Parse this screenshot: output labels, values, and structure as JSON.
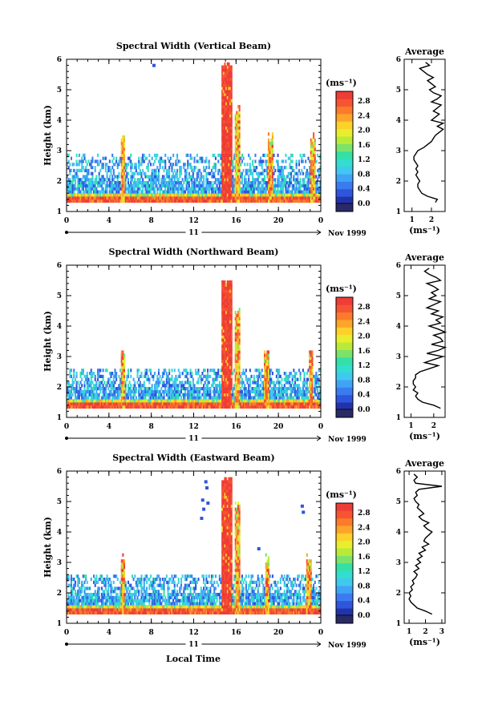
{
  "figure": {
    "xlabel_bottom": "Local Time",
    "date_label": "Nov 1999",
    "day_label": "11",
    "unit_label": "(ms⁻¹)",
    "avg_title": "Average"
  },
  "colorscale": [
    "#2a2a66",
    "#2233aa",
    "#2f55dd",
    "#3a7cf0",
    "#40a4f5",
    "#41c8f0",
    "#33ddd0",
    "#33e0a6",
    "#7be36a",
    "#b9ea3a",
    "#e8ee2e",
    "#fbd12a",
    "#fda42a",
    "#fb7a2c",
    "#f65432",
    "#ee3c36"
  ],
  "chart_data": [
    {
      "type": "heatmap",
      "title": "Spectral Width (Vertical Beam)",
      "xlabel": "",
      "ylabel": "Height (km)",
      "x_ticks": [
        "0",
        "4",
        "8",
        "12",
        "16",
        "20",
        "0"
      ],
      "y_ticks": [
        "1",
        "2",
        "3",
        "4",
        "5",
        "6"
      ],
      "xlim": [
        0,
        24
      ],
      "ylim": [
        1,
        6
      ],
      "colorbar_ticks": [
        "0.0",
        "0.4",
        "0.8",
        "1.2",
        "1.6",
        "2.0",
        "2.4",
        "2.8"
      ],
      "colorbar_range": [
        0,
        3.0
      ],
      "features": {
        "layer_top_km": 2.9,
        "spike_start_h": 14.6,
        "spike_end_h": 15.6,
        "spike_top_km": 5.85,
        "spike2_start_h": 15.8,
        "spike2_end_h": 16.3,
        "spike2_top_km": 4.5,
        "col_at_h": [
          5.3,
          19.2,
          23.2
        ],
        "isolated_points": [
          [
            8.1,
            5.75
          ]
        ]
      },
      "average_profile": {
        "xlabel": "(ms⁻¹)",
        "x_ticks": [
          "1",
          "2"
        ],
        "xlim": [
          0.6,
          2.7
        ],
        "y_ticks": [
          "1",
          "2",
          "3",
          "4",
          "5",
          "6"
        ],
        "height_km": [
          1.3,
          1.4,
          1.5,
          1.6,
          1.7,
          1.8,
          1.9,
          2.0,
          2.1,
          2.2,
          2.3,
          2.4,
          2.5,
          2.6,
          2.7,
          2.8,
          2.9,
          3.0,
          3.1,
          3.2,
          3.3,
          3.4,
          3.5,
          3.6,
          3.7,
          3.8,
          3.9,
          4.0,
          4.1,
          4.2,
          4.3,
          4.4,
          4.5,
          4.6,
          4.7,
          4.8,
          4.9,
          5.0,
          5.1,
          5.2,
          5.3,
          5.4,
          5.5,
          5.6,
          5.7,
          5.8,
          5.9
        ],
        "width_ms": [
          2.2,
          2.3,
          1.8,
          1.5,
          1.4,
          1.3,
          1.3,
          1.4,
          1.3,
          1.2,
          1.3,
          1.2,
          1.3,
          1.2,
          1.1,
          1.1,
          1.2,
          1.3,
          1.6,
          1.8,
          2.0,
          2.1,
          2.2,
          2.4,
          2.6,
          2.3,
          2.6,
          2.0,
          2.2,
          2.4,
          2.1,
          2.3,
          2.5,
          2.0,
          2.3,
          2.5,
          2.1,
          1.9,
          2.2,
          2.0,
          1.8,
          2.1,
          1.8,
          1.6,
          1.4,
          1.9,
          1.7
        ]
      }
    },
    {
      "type": "heatmap",
      "title": "Spectral Width (Northward Beam)",
      "xlabel": "",
      "ylabel": "Height (km)",
      "x_ticks": [
        "0",
        "4",
        "8",
        "12",
        "16",
        "20",
        "0"
      ],
      "y_ticks": [
        "1",
        "2",
        "3",
        "4",
        "5",
        "6"
      ],
      "xlim": [
        0,
        24
      ],
      "ylim": [
        1,
        6
      ],
      "colorbar_ticks": [
        "0.0",
        "0.4",
        "0.8",
        "1.2",
        "1.6",
        "2.0",
        "2.4",
        "2.8"
      ],
      "colorbar_range": [
        0,
        3.0
      ],
      "features": {
        "layer_top_km": 2.6,
        "spike_start_h": 14.6,
        "spike_end_h": 15.6,
        "spike_top_km": 5.5,
        "spike2_start_h": 15.8,
        "spike2_end_h": 16.3,
        "spike2_top_km": 4.6,
        "col_at_h": [
          5.2,
          18.8,
          23.0
        ],
        "isolated_points": []
      },
      "average_profile": {
        "xlabel": "(ms⁻¹)",
        "x_ticks": [
          "1",
          "2"
        ],
        "xlim": [
          0.7,
          2.5
        ],
        "y_ticks": [
          "1",
          "2",
          "3",
          "4",
          "5",
          "6"
        ],
        "height_km": [
          1.3,
          1.4,
          1.5,
          1.6,
          1.7,
          1.8,
          1.9,
          2.0,
          2.1,
          2.2,
          2.3,
          2.4,
          2.5,
          2.6,
          2.7,
          2.8,
          2.9,
          3.0,
          3.1,
          3.2,
          3.3,
          3.4,
          3.5,
          3.6,
          3.7,
          3.8,
          3.9,
          4.0,
          4.1,
          4.2,
          4.3,
          4.4,
          4.5,
          4.6,
          4.7,
          4.8,
          4.9,
          5.0,
          5.1,
          5.2,
          5.3,
          5.4,
          5.5,
          5.6,
          5.7,
          5.8,
          5.9
        ],
        "width_ms": [
          2.3,
          2.0,
          1.5,
          1.3,
          1.2,
          1.3,
          1.1,
          1.2,
          1.1,
          1.1,
          1.2,
          1.2,
          1.4,
          1.8,
          2.2,
          1.6,
          2.0,
          2.4,
          1.7,
          2.2,
          2.5,
          1.9,
          2.4,
          2.3,
          2.0,
          2.5,
          2.2,
          1.8,
          2.3,
          2.1,
          2.4,
          1.9,
          2.2,
          1.7,
          2.0,
          2.3,
          1.8,
          2.1,
          1.9,
          2.2,
          2.0,
          1.7,
          2.3,
          2.1,
          1.8,
          1.6,
          1.8
        ]
      }
    },
    {
      "type": "heatmap",
      "title": "Spectral Width (Eastward Beam)",
      "xlabel": "Local Time",
      "ylabel": "Height (km)",
      "x_ticks": [
        "0",
        "4",
        "8",
        "12",
        "16",
        "20",
        "0"
      ],
      "y_ticks": [
        "1",
        "2",
        "3",
        "4",
        "5",
        "6"
      ],
      "xlim": [
        0,
        24
      ],
      "ylim": [
        1,
        6
      ],
      "colorbar_ticks": [
        "0.0",
        "0.4",
        "0.8",
        "1.2",
        "1.6",
        "2.0",
        "2.4",
        "2.8"
      ],
      "colorbar_range": [
        0,
        3.0
      ],
      "features": {
        "layer_top_km": 2.6,
        "spike_start_h": 14.6,
        "spike_end_h": 15.6,
        "spike_top_km": 5.8,
        "spike2_start_h": 15.8,
        "spike2_end_h": 16.3,
        "spike2_top_km": 5.0,
        "col_at_h": [
          5.3,
          18.9,
          22.8
        ],
        "isolated_points": [
          [
            13.0,
            5.6
          ],
          [
            13.1,
            5.4
          ],
          [
            12.7,
            5.0
          ],
          [
            12.8,
            4.7
          ],
          [
            13.2,
            4.9
          ],
          [
            12.6,
            4.4
          ],
          [
            22.1,
            4.8
          ],
          [
            22.2,
            4.6
          ],
          [
            18.0,
            3.4
          ]
        ]
      },
      "average_profile": {
        "xlabel": "(ms⁻¹)",
        "x_ticks": [
          "1",
          "2",
          "3"
        ],
        "xlim": [
          0.7,
          3.2
        ],
        "y_ticks": [
          "1",
          "2",
          "3",
          "4",
          "5",
          "6"
        ],
        "height_km": [
          1.3,
          1.4,
          1.5,
          1.6,
          1.7,
          1.8,
          1.9,
          2.0,
          2.1,
          2.2,
          2.3,
          2.4,
          2.5,
          2.6,
          2.7,
          2.8,
          2.9,
          3.0,
          3.1,
          3.2,
          3.3,
          3.4,
          3.5,
          3.6,
          3.7,
          3.8,
          3.9,
          4.0,
          4.1,
          4.2,
          4.3,
          4.4,
          4.5,
          4.6,
          4.7,
          4.8,
          4.9,
          5.0,
          5.1,
          5.2,
          5.3,
          5.4,
          5.5,
          5.6,
          5.7,
          5.8,
          5.9
        ],
        "width_ms": [
          2.4,
          2.0,
          1.5,
          1.3,
          1.1,
          1.0,
          1.1,
          1.0,
          1.2,
          1.1,
          1.3,
          1.2,
          1.4,
          1.5,
          1.3,
          1.6,
          1.4,
          1.7,
          1.5,
          1.8,
          1.6,
          2.0,
          1.8,
          2.2,
          1.9,
          2.0,
          2.2,
          2.4,
          2.1,
          1.9,
          2.2,
          1.8,
          1.6,
          1.9,
          1.7,
          1.5,
          1.6,
          1.4,
          1.3,
          1.5,
          1.4,
          1.6,
          3.0,
          1.4,
          1.3,
          1.5,
          1.3
        ]
      }
    }
  ]
}
